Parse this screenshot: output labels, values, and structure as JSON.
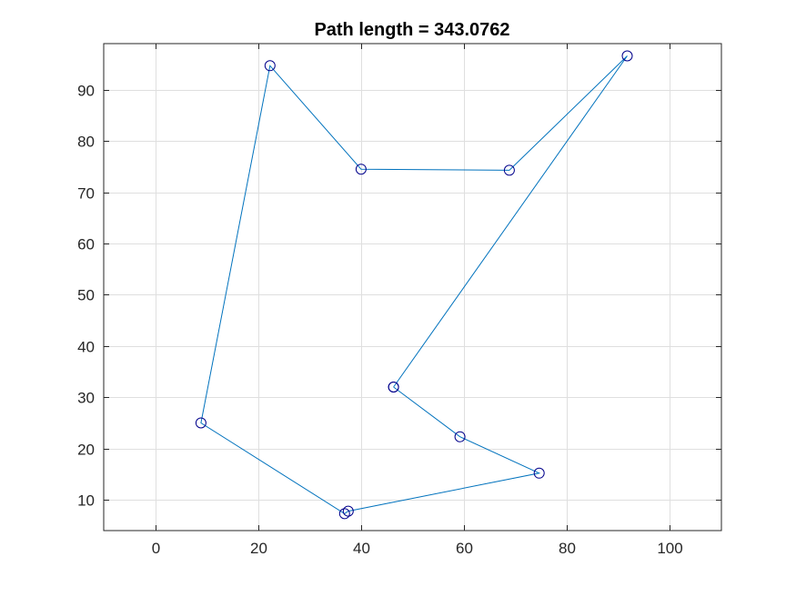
{
  "chart_data": {
    "type": "line",
    "title": "Path length = 343.0762",
    "xlabel": "",
    "ylabel": "",
    "xlim": [
      -10,
      110
    ],
    "ylim": [
      4,
      99
    ],
    "xticks": [
      0,
      20,
      40,
      60,
      80,
      100
    ],
    "yticks": [
      10,
      20,
      30,
      40,
      50,
      60,
      70,
      80,
      90
    ],
    "xtick_labels": [
      "0",
      "20",
      "40",
      "60",
      "80",
      "100"
    ],
    "ytick_labels": [
      "10",
      "20",
      "30",
      "40",
      "50",
      "60",
      "70",
      "80",
      "90"
    ],
    "grid": true,
    "series": [
      {
        "marker": "circle",
        "line_color": "#0072bd",
        "marker_color": "#00008b",
        "points": [
          {
            "x": 46.3,
            "y": 32.0
          },
          {
            "x": 59.2,
            "y": 22.3
          },
          {
            "x": 74.6,
            "y": 15.2
          },
          {
            "x": 37.5,
            "y": 7.8
          },
          {
            "x": 36.8,
            "y": 7.3
          },
          {
            "x": 8.9,
            "y": 25.0
          },
          {
            "x": 22.3,
            "y": 94.7
          },
          {
            "x": 40.0,
            "y": 74.5
          },
          {
            "x": 68.8,
            "y": 74.3
          },
          {
            "x": 91.7,
            "y": 96.6
          },
          {
            "x": 46.3,
            "y": 32.0
          }
        ]
      }
    ],
    "colors": {
      "axis": "#262626",
      "grid": "#dfdfdf",
      "background": "#ffffff"
    }
  }
}
